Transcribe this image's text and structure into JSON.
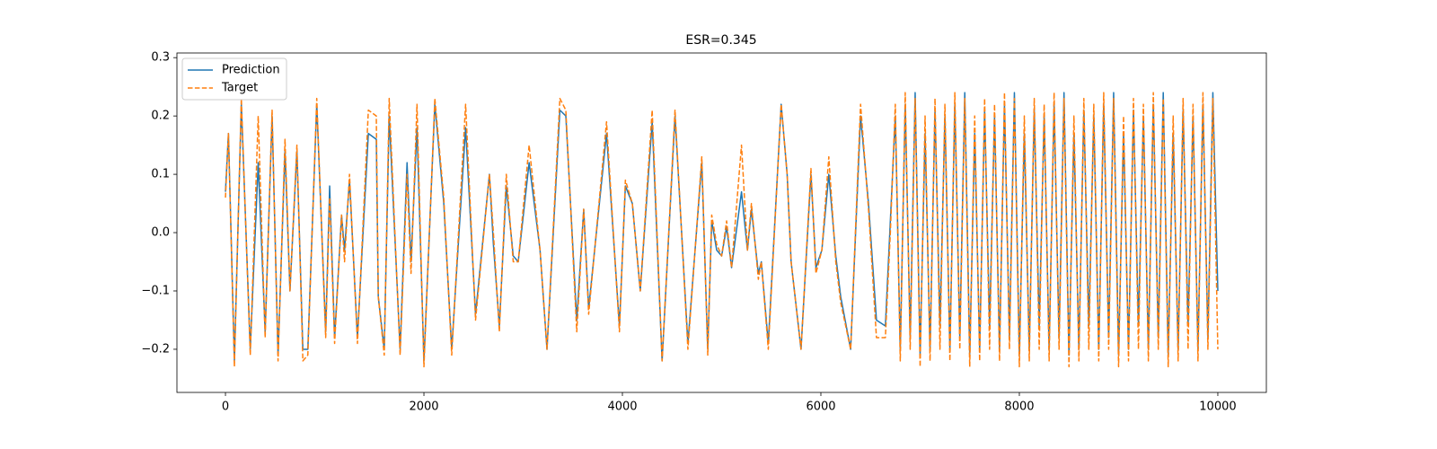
{
  "chart_data": {
    "type": "line",
    "title": "ESR=0.345",
    "x": [
      0,
      30,
      90,
      160,
      250,
      330,
      400,
      470,
      530,
      600,
      650,
      720,
      780,
      830,
      920,
      1010,
      1050,
      1100,
      1170,
      1200,
      1250,
      1330,
      1440,
      1520,
      1540,
      1600,
      1650,
      1760,
      1830,
      1870,
      1930,
      2000,
      2110,
      2200,
      2280,
      2420,
      2520,
      2660,
      2700,
      2760,
      2830,
      2900,
      2950,
      3060,
      3170,
      3240,
      3370,
      3430,
      3540,
      3610,
      3660,
      3840,
      3970,
      4030,
      4100,
      4180,
      4300,
      4400,
      4530,
      4660,
      4800,
      4860,
      4900,
      4950,
      5000,
      5050,
      5100,
      5200,
      5260,
      5300,
      5370,
      5400,
      5470,
      5600,
      5660,
      5700,
      5800,
      5900,
      5950,
      6010,
      6080,
      6150,
      6200,
      6300,
      6400,
      6480,
      6560,
      6650,
      6700,
      6750,
      6800,
      6850,
      6900,
      6950,
      7000,
      7050,
      7100,
      7150,
      7200,
      7250,
      7300,
      7350,
      7400,
      7450,
      7500,
      7550,
      7600,
      7650,
      7700,
      7750,
      7800,
      7850,
      7900,
      7950,
      8000,
      8050,
      8100,
      8150,
      8200,
      8250,
      8300,
      8350,
      8400,
      8450,
      8500,
      8550,
      8600,
      8650,
      8700,
      8750,
      8800,
      8850,
      8900,
      8950,
      9000,
      9050,
      9100,
      9150,
      9200,
      9250,
      9300,
      9350,
      9400,
      9450,
      9500,
      9550,
      9600,
      9650,
      9700,
      9750,
      9800,
      9850,
      9900,
      9950,
      10000
    ],
    "series": [
      {
        "name": "Prediction",
        "color": "#1f77b4",
        "dashed": false,
        "values": [
          0.07,
          0.17,
          -0.22,
          0.22,
          -0.2,
          0.12,
          -0.17,
          0.2,
          -0.21,
          0.14,
          -0.1,
          0.14,
          -0.2,
          -0.2,
          0.22,
          -0.17,
          0.08,
          -0.18,
          0.03,
          -0.03,
          0.09,
          -0.18,
          0.17,
          0.16,
          -0.11,
          -0.2,
          0.2,
          -0.2,
          0.12,
          -0.05,
          0.18,
          -0.22,
          0.22,
          0.05,
          -0.2,
          0.18,
          -0.14,
          0.1,
          -0.02,
          -0.16,
          0.08,
          -0.04,
          -0.05,
          0.12,
          -0.03,
          -0.2,
          0.21,
          0.2,
          -0.15,
          0.04,
          -0.13,
          0.17,
          -0.16,
          0.08,
          0.05,
          -0.1,
          0.19,
          -0.22,
          0.2,
          -0.19,
          0.12,
          -0.2,
          0.02,
          -0.03,
          -0.04,
          0.01,
          -0.06,
          0.07,
          -0.03,
          0.04,
          -0.07,
          -0.05,
          -0.19,
          0.22,
          0.1,
          -0.05,
          -0.2,
          0.1,
          -0.06,
          -0.03,
          0.1,
          -0.04,
          -0.11,
          -0.2,
          0.2,
          0.05,
          -0.15,
          -0.16,
          0.02,
          0.2,
          -0.2,
          0.22,
          -0.18,
          0.24,
          -0.21,
          0.17,
          -0.2,
          0.21,
          -0.16,
          0.2,
          -0.2,
          0.22,
          -0.18,
          0.24,
          -0.21,
          0.17,
          -0.2,
          0.21,
          -0.16,
          0.2,
          -0.2,
          0.22,
          -0.18,
          0.24,
          -0.21,
          0.17,
          -0.2,
          0.21,
          -0.16,
          0.2,
          -0.2,
          0.22,
          -0.18,
          0.24,
          -0.21,
          0.17,
          -0.2,
          0.21,
          -0.16,
          0.2,
          -0.2,
          0.22,
          -0.18,
          0.24,
          -0.21,
          0.17,
          -0.2,
          0.21,
          -0.16,
          0.2,
          -0.2,
          0.22,
          -0.18,
          0.24,
          -0.21,
          0.17,
          -0.2,
          0.21,
          -0.16,
          0.2,
          -0.2,
          0.22,
          -0.18,
          0.24,
          -0.1
        ]
      },
      {
        "name": "Target",
        "color": "#ff7f0e",
        "dashed": true,
        "values": [
          0.06,
          0.17,
          -0.23,
          0.23,
          -0.21,
          0.2,
          -0.18,
          0.21,
          -0.22,
          0.16,
          -0.1,
          0.15,
          -0.22,
          -0.21,
          0.23,
          -0.18,
          0.06,
          -0.19,
          0.03,
          -0.05,
          0.1,
          -0.19,
          0.21,
          0.2,
          -0.11,
          -0.21,
          0.23,
          -0.21,
          0.1,
          -0.07,
          0.22,
          -0.23,
          0.23,
          0.06,
          -0.21,
          0.22,
          -0.15,
          0.1,
          0,
          -0.17,
          0.1,
          -0.05,
          -0.05,
          0.15,
          -0.03,
          -0.2,
          0.23,
          0.21,
          -0.17,
          0.04,
          -0.14,
          0.19,
          -0.17,
          0.09,
          0.05,
          -0.1,
          0.21,
          -0.22,
          0.21,
          -0.2,
          0.13,
          -0.21,
          0.03,
          -0.02,
          -0.04,
          0.02,
          -0.06,
          0.15,
          -0.03,
          0.05,
          -0.08,
          -0.05,
          -0.2,
          0.22,
          0.1,
          -0.05,
          -0.2,
          0.11,
          -0.07,
          -0.03,
          0.13,
          -0.05,
          -0.12,
          -0.2,
          0.22,
          0.04,
          -0.18,
          -0.18,
          0,
          0.22,
          -0.22,
          0.24,
          -0.2,
          0.23,
          -0.23,
          0.2,
          -0.22,
          0.23,
          -0.2,
          0.22,
          -0.22,
          0.24,
          -0.2,
          0.23,
          -0.23,
          0.2,
          -0.22,
          0.23,
          -0.2,
          0.22,
          -0.22,
          0.24,
          -0.2,
          0.23,
          -0.23,
          0.2,
          -0.22,
          0.23,
          -0.2,
          0.22,
          -0.22,
          0.24,
          -0.2,
          0.23,
          -0.23,
          0.2,
          -0.22,
          0.23,
          -0.2,
          0.22,
          -0.22,
          0.24,
          -0.2,
          0.23,
          -0.23,
          0.2,
          -0.22,
          0.23,
          -0.2,
          0.22,
          -0.22,
          0.24,
          -0.2,
          0.23,
          -0.23,
          0.2,
          -0.22,
          0.23,
          -0.2,
          0.22,
          -0.22,
          0.24,
          -0.2,
          0.23,
          -0.2
        ]
      }
    ],
    "xlim": [
      -489,
      10489
    ],
    "ylim": [
      -0.274,
      0.308
    ],
    "xticks": [
      0,
      2000,
      4000,
      6000,
      8000,
      10000
    ],
    "yticks": [
      {
        "value": -0.2,
        "label": "−0.2"
      },
      {
        "value": -0.1,
        "label": "−0.1"
      },
      {
        "value": 0,
        "label": "0.0"
      },
      0.1,
      0.2,
      0.3
    ],
    "legend": "upper left"
  }
}
